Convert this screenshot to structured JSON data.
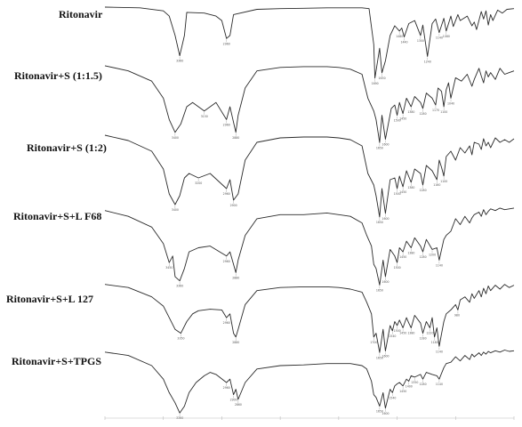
{
  "chart_data": {
    "type": "line",
    "title": "",
    "xlabel": "",
    "ylabel": "",
    "x_direction": "decreasing",
    "xlim": [
      4000,
      500
    ],
    "grid": false,
    "legend": "none",
    "stacked_offsets": true,
    "series": [
      {
        "name": "Ritonavir",
        "x": [
          4000,
          3700,
          3500,
          3450,
          3400,
          3360,
          3320,
          3300,
          3150,
          3050,
          3000,
          2960,
          2930,
          2900,
          2700,
          2500,
          2300,
          2100,
          2000,
          1900,
          1800,
          1740,
          1700,
          1690,
          1650,
          1630,
          1600,
          1560,
          1520,
          1480,
          1460,
          1440,
          1400,
          1350,
          1300,
          1280,
          1240,
          1200,
          1170,
          1140,
          1100,
          1080,
          1040,
          1020,
          980,
          960,
          900,
          860,
          840,
          820,
          780,
          760,
          740,
          720,
          700,
          680,
          640,
          600,
          560,
          500
        ],
        "y": [
          1,
          0.99,
          0.95,
          0.88,
          0.62,
          0.35,
          0.62,
          0.93,
          0.92,
          0.88,
          0.82,
          0.58,
          0.62,
          0.9,
          0.97,
          0.98,
          0.985,
          0.99,
          0.99,
          0.99,
          0.99,
          0.98,
          0.5,
          0.05,
          0.45,
          0.12,
          0.28,
          0.62,
          0.75,
          0.68,
          0.72,
          0.6,
          0.78,
          0.82,
          0.62,
          0.76,
          0.34,
          0.78,
          0.84,
          0.66,
          0.85,
          0.68,
          0.88,
          0.74,
          0.9,
          0.82,
          0.88,
          0.75,
          0.8,
          0.7,
          0.94,
          0.84,
          0.95,
          0.76,
          0.9,
          0.82,
          0.96,
          0.92,
          0.97,
          0.98
        ]
      },
      {
        "name": "Ritonavir+S (1:1.5)",
        "x": [
          4000,
          3800,
          3600,
          3500,
          3450,
          3400,
          3350,
          3300,
          3250,
          3150,
          3050,
          2960,
          2930,
          2880,
          2860,
          2800,
          2700,
          2500,
          2300,
          2100,
          2000,
          1900,
          1800,
          1750,
          1700,
          1680,
          1650,
          1630,
          1600,
          1550,
          1520,
          1500,
          1480,
          1450,
          1420,
          1380,
          1350,
          1300,
          1280,
          1250,
          1200,
          1170,
          1150,
          1120,
          1100,
          1080,
          1060,
          1040,
          1000,
          950,
          900,
          860,
          840,
          800,
          780,
          760,
          740,
          720,
          700,
          660,
          620,
          580,
          540,
          500
        ],
        "y": [
          0.98,
          0.92,
          0.8,
          0.6,
          0.35,
          0.2,
          0.3,
          0.5,
          0.55,
          0.45,
          0.55,
          0.35,
          0.5,
          0.2,
          0.4,
          0.72,
          0.92,
          0.96,
          0.97,
          0.97,
          0.96,
          0.94,
          0.88,
          0.6,
          0.45,
          0.35,
          0.08,
          0.4,
          0.12,
          0.48,
          0.52,
          0.4,
          0.55,
          0.42,
          0.6,
          0.5,
          0.62,
          0.55,
          0.48,
          0.66,
          0.6,
          0.52,
          0.72,
          0.68,
          0.5,
          0.7,
          0.78,
          0.6,
          0.84,
          0.8,
          0.88,
          0.74,
          0.82,
          0.95,
          0.86,
          0.78,
          0.92,
          0.85,
          0.9,
          0.82,
          0.95,
          0.88,
          0.9,
          0.92
        ]
      },
      {
        "name": "Ritonavir+S (1:2)",
        "x": [
          4000,
          3800,
          3600,
          3500,
          3450,
          3400,
          3360,
          3320,
          3280,
          3200,
          3100,
          2960,
          2930,
          2900,
          2860,
          2800,
          2700,
          2500,
          2300,
          2100,
          2000,
          1900,
          1800,
          1750,
          1700,
          1680,
          1650,
          1630,
          1600,
          1560,
          1520,
          1500,
          1480,
          1450,
          1420,
          1380,
          1350,
          1300,
          1280,
          1250,
          1200,
          1160,
          1140,
          1120,
          1100,
          1080,
          1040,
          1000,
          960,
          920,
          880,
          860,
          840,
          800,
          780,
          760,
          740,
          720,
          700,
          660,
          620,
          580,
          540,
          500
        ],
        "y": [
          0.98,
          0.92,
          0.8,
          0.6,
          0.32,
          0.2,
          0.3,
          0.5,
          0.55,
          0.5,
          0.55,
          0.38,
          0.48,
          0.25,
          0.32,
          0.7,
          0.9,
          0.95,
          0.96,
          0.96,
          0.95,
          0.93,
          0.86,
          0.55,
          0.42,
          0.3,
          0.06,
          0.38,
          0.1,
          0.48,
          0.5,
          0.38,
          0.52,
          0.4,
          0.58,
          0.45,
          0.6,
          0.55,
          0.42,
          0.64,
          0.58,
          0.48,
          0.7,
          0.62,
          0.52,
          0.74,
          0.8,
          0.7,
          0.84,
          0.78,
          0.86,
          0.76,
          0.9,
          0.88,
          0.82,
          0.94,
          0.86,
          0.9,
          0.84,
          0.95,
          0.9,
          0.93,
          0.9,
          0.94
        ]
      },
      {
        "name": "Ritonavir+S+L F68",
        "x": [
          4000,
          3800,
          3600,
          3500,
          3450,
          3420,
          3400,
          3360,
          3320,
          3280,
          3200,
          3100,
          2960,
          2930,
          2900,
          2880,
          2860,
          2800,
          2700,
          2500,
          2300,
          2100,
          2000,
          1900,
          1800,
          1760,
          1720,
          1700,
          1680,
          1650,
          1620,
          1600,
          1560,
          1520,
          1500,
          1480,
          1450,
          1420,
          1380,
          1350,
          1300,
          1280,
          1250,
          1200,
          1160,
          1140,
          1100,
          1080,
          1040,
          1000,
          960,
          920,
          880,
          860,
          840,
          800,
          780,
          760,
          740,
          720,
          700,
          660,
          620,
          580,
          540,
          500
        ],
        "y": [
          0.95,
          0.88,
          0.75,
          0.55,
          0.32,
          0.4,
          0.15,
          0.1,
          0.25,
          0.45,
          0.5,
          0.52,
          0.4,
          0.45,
          0.3,
          0.2,
          0.35,
          0.65,
          0.85,
          0.9,
          0.9,
          0.92,
          0.9,
          0.88,
          0.8,
          0.65,
          0.52,
          0.3,
          0.25,
          0.05,
          0.35,
          0.15,
          0.48,
          0.4,
          0.32,
          0.5,
          0.45,
          0.58,
          0.5,
          0.62,
          0.52,
          0.45,
          0.6,
          0.48,
          0.5,
          0.35,
          0.6,
          0.65,
          0.7,
          0.85,
          0.78,
          0.88,
          0.8,
          0.86,
          0.9,
          0.93,
          0.88,
          0.96,
          0.9,
          0.94,
          0.97,
          0.95,
          0.98,
          0.96,
          0.97,
          0.98
        ]
      },
      {
        "name": "Ritonavir+S+L 127",
        "x": [
          4000,
          3800,
          3600,
          3500,
          3450,
          3400,
          3350,
          3300,
          3250,
          3200,
          3100,
          3000,
          2960,
          2930,
          2900,
          2880,
          2860,
          2800,
          2700,
          2500,
          2300,
          2100,
          2000,
          1900,
          1800,
          1760,
          1720,
          1700,
          1680,
          1650,
          1620,
          1600,
          1560,
          1540,
          1520,
          1500,
          1480,
          1450,
          1420,
          1400,
          1380,
          1350,
          1300,
          1280,
          1250,
          1220,
          1200,
          1180,
          1160,
          1140,
          1100,
          1080,
          1040,
          1000,
          980,
          960,
          920,
          880,
          860,
          840,
          800,
          780,
          760,
          740,
          720,
          700,
          660,
          620,
          580,
          540,
          500
        ],
        "y": [
          0.98,
          0.94,
          0.82,
          0.7,
          0.55,
          0.4,
          0.35,
          0.5,
          0.6,
          0.64,
          0.66,
          0.65,
          0.55,
          0.6,
          0.35,
          0.3,
          0.4,
          0.72,
          0.9,
          0.94,
          0.95,
          0.95,
          0.94,
          0.92,
          0.88,
          0.75,
          0.6,
          0.3,
          0.35,
          0.1,
          0.4,
          0.12,
          0.45,
          0.38,
          0.5,
          0.45,
          0.52,
          0.42,
          0.55,
          0.48,
          0.42,
          0.58,
          0.48,
          0.35,
          0.5,
          0.42,
          0.55,
          0.3,
          0.42,
          0.18,
          0.5,
          0.6,
          0.65,
          0.72,
          0.65,
          0.78,
          0.82,
          0.75,
          0.86,
          0.8,
          0.9,
          0.82,
          0.93,
          0.86,
          0.96,
          0.9,
          0.97,
          0.92,
          0.98,
          0.94,
          0.97
        ]
      },
      {
        "name": "Ritonavir+S+TPGS",
        "x": [
          4000,
          3800,
          3600,
          3500,
          3450,
          3400,
          3360,
          3320,
          3280,
          3220,
          3150,
          3100,
          3050,
          2960,
          2930,
          2900,
          2880,
          2860,
          2800,
          2700,
          2500,
          2300,
          2100,
          2000,
          1900,
          1800,
          1760,
          1720,
          1700,
          1680,
          1650,
          1620,
          1600,
          1560,
          1540,
          1520,
          1500,
          1480,
          1450,
          1420,
          1400,
          1380,
          1350,
          1300,
          1280,
          1250,
          1200,
          1160,
          1140,
          1100,
          1080,
          1040,
          1000,
          960,
          920,
          880,
          860,
          840,
          800,
          780,
          760,
          740,
          720,
          700,
          660,
          620,
          580,
          540,
          500
        ],
        "y": [
          0.95,
          0.9,
          0.75,
          0.55,
          0.35,
          0.2,
          0.05,
          0.15,
          0.35,
          0.5,
          0.6,
          0.65,
          0.62,
          0.5,
          0.55,
          0.32,
          0.4,
          0.25,
          0.5,
          0.7,
          0.75,
          0.76,
          0.78,
          0.78,
          0.78,
          0.75,
          0.7,
          0.52,
          0.32,
          0.28,
          0.15,
          0.35,
          0.12,
          0.4,
          0.35,
          0.45,
          0.48,
          0.5,
          0.45,
          0.55,
          0.52,
          0.6,
          0.58,
          0.62,
          0.55,
          0.65,
          0.62,
          0.6,
          0.55,
          0.72,
          0.78,
          0.8,
          0.88,
          0.82,
          0.9,
          0.84,
          0.92,
          0.88,
          0.94,
          0.9,
          0.95,
          0.92,
          0.96,
          0.94,
          0.97,
          0.95,
          0.98,
          0.96,
          0.97
        ]
      }
    ]
  }
}
